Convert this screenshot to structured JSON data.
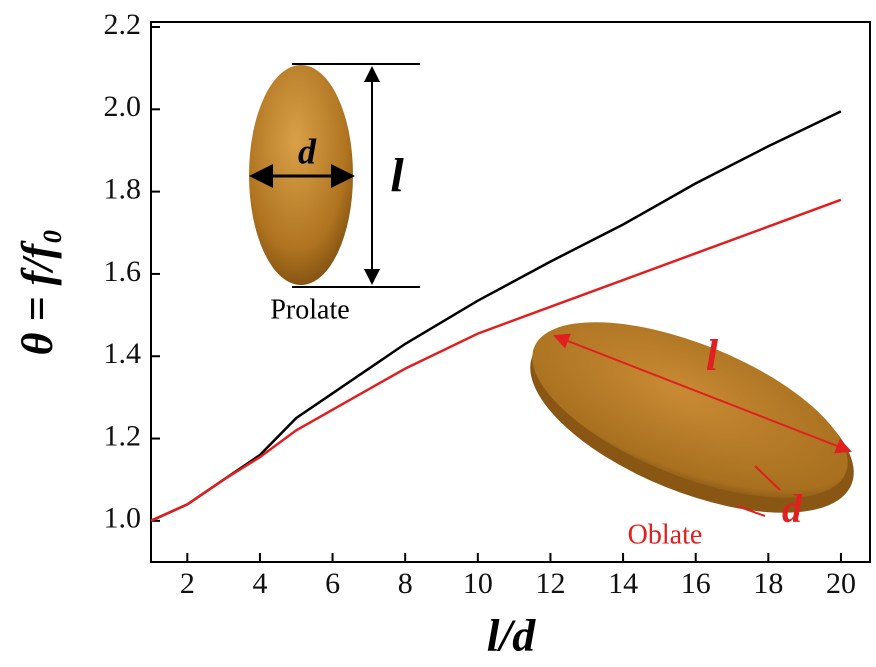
{
  "chart_data": {
    "type": "line",
    "x_label": "l/d",
    "y_label": "θ = f/f₀",
    "x": [
      1,
      2,
      3,
      4,
      5,
      6,
      8,
      10,
      12,
      14,
      16,
      18,
      20
    ],
    "series": [
      {
        "name": "Prolate",
        "color": "#000000",
        "values": [
          1.0,
          1.04,
          1.1,
          1.16,
          1.25,
          1.31,
          1.43,
          1.535,
          1.63,
          1.72,
          1.82,
          1.91,
          1.995
        ]
      },
      {
        "name": "Oblate",
        "color": "#e02020",
        "values": [
          1.0,
          1.04,
          1.1,
          1.155,
          1.22,
          1.27,
          1.37,
          1.455,
          1.52,
          1.585,
          1.65,
          1.715,
          1.78
        ]
      }
    ],
    "xlim": [
      1,
      20.8
    ],
    "ylim": [
      0.9,
      2.2
    ],
    "xticks": [
      2,
      4,
      6,
      8,
      10,
      12,
      14,
      16,
      18,
      20
    ],
    "yticks": [
      {
        "value": 1,
        "label": "1.0"
      },
      1.2,
      1.4,
      1.6,
      1.8,
      {
        "value": 2,
        "label": "2.0"
      },
      2.2
    ],
    "annotations": [
      "d",
      "l",
      "l",
      "d"
    ]
  }
}
